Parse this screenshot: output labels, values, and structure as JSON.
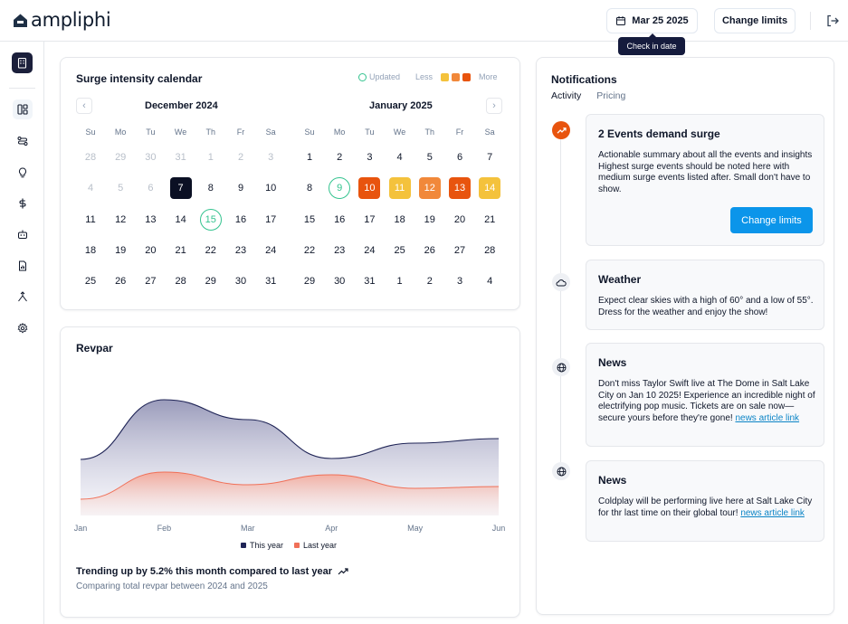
{
  "app": {
    "name": "ampliphi"
  },
  "header": {
    "date_label": "Mar 25 2025",
    "change_limits_label": "Change limits",
    "tooltip": "Check in date"
  },
  "sidebar": {
    "icons": [
      "building-icon",
      "layout-icon",
      "route-icon",
      "lightbulb-icon",
      "dollar-icon",
      "robot-icon",
      "report-icon",
      "merge-icon",
      "settings-icon"
    ]
  },
  "calendar": {
    "title": "Surge intensity calendar",
    "legend": {
      "updated": "Updated",
      "less": "Less",
      "more": "More"
    },
    "weekdays": [
      "Su",
      "Mo",
      "Tu",
      "We",
      "Th",
      "Fr",
      "Sa"
    ],
    "months": [
      {
        "title": "December 2024",
        "days": [
          {
            "d": "28",
            "s": "muted"
          },
          {
            "d": "29",
            "s": "muted"
          },
          {
            "d": "30",
            "s": "muted"
          },
          {
            "d": "31",
            "s": "muted"
          },
          {
            "d": "1",
            "s": "muted"
          },
          {
            "d": "2",
            "s": "muted"
          },
          {
            "d": "3",
            "s": "muted"
          },
          {
            "d": "4",
            "s": "muted"
          },
          {
            "d": "5",
            "s": "muted"
          },
          {
            "d": "6",
            "s": "muted"
          },
          {
            "d": "7",
            "s": "selected"
          },
          {
            "d": "8",
            "s": ""
          },
          {
            "d": "9",
            "s": ""
          },
          {
            "d": "10",
            "s": ""
          },
          {
            "d": "11",
            "s": ""
          },
          {
            "d": "12",
            "s": ""
          },
          {
            "d": "13",
            "s": ""
          },
          {
            "d": "14",
            "s": ""
          },
          {
            "d": "15",
            "s": "ring"
          },
          {
            "d": "16",
            "s": ""
          },
          {
            "d": "17",
            "s": ""
          },
          {
            "d": "18",
            "s": ""
          },
          {
            "d": "19",
            "s": ""
          },
          {
            "d": "20",
            "s": ""
          },
          {
            "d": "21",
            "s": ""
          },
          {
            "d": "22",
            "s": ""
          },
          {
            "d": "23",
            "s": ""
          },
          {
            "d": "24",
            "s": ""
          },
          {
            "d": "25",
            "s": ""
          },
          {
            "d": "26",
            "s": ""
          },
          {
            "d": "27",
            "s": ""
          },
          {
            "d": "28",
            "s": ""
          },
          {
            "d": "29",
            "s": ""
          },
          {
            "d": "30",
            "s": ""
          },
          {
            "d": "31",
            "s": ""
          }
        ]
      },
      {
        "title": "January 2025",
        "days": [
          {
            "d": "1",
            "s": ""
          },
          {
            "d": "2",
            "s": ""
          },
          {
            "d": "3",
            "s": ""
          },
          {
            "d": "4",
            "s": ""
          },
          {
            "d": "5",
            "s": ""
          },
          {
            "d": "6",
            "s": ""
          },
          {
            "d": "7",
            "s": ""
          },
          {
            "d": "8",
            "s": ""
          },
          {
            "d": "9",
            "s": "ring"
          },
          {
            "d": "10",
            "s": "h3"
          },
          {
            "d": "11",
            "s": "h1"
          },
          {
            "d": "12",
            "s": "h2"
          },
          {
            "d": "13",
            "s": "h3"
          },
          {
            "d": "14",
            "s": "h1"
          },
          {
            "d": "15",
            "s": ""
          },
          {
            "d": "16",
            "s": ""
          },
          {
            "d": "17",
            "s": ""
          },
          {
            "d": "18",
            "s": ""
          },
          {
            "d": "19",
            "s": ""
          },
          {
            "d": "20",
            "s": ""
          },
          {
            "d": "21",
            "s": ""
          },
          {
            "d": "22",
            "s": ""
          },
          {
            "d": "23",
            "s": ""
          },
          {
            "d": "24",
            "s": ""
          },
          {
            "d": "25",
            "s": ""
          },
          {
            "d": "26",
            "s": ""
          },
          {
            "d": "27",
            "s": ""
          },
          {
            "d": "28",
            "s": ""
          },
          {
            "d": "29",
            "s": ""
          },
          {
            "d": "30",
            "s": ""
          },
          {
            "d": "31",
            "s": ""
          },
          {
            "d": "1",
            "s": ""
          },
          {
            "d": "2",
            "s": ""
          },
          {
            "d": "3",
            "s": ""
          },
          {
            "d": "4",
            "s": ""
          }
        ]
      }
    ],
    "colors": {
      "low": "#f4c23c",
      "mid": "#f1883a",
      "high": "#e8540e",
      "updated": "#34c38f"
    }
  },
  "revpar": {
    "title": "Revpar",
    "trend_text": "Trending up by 5.2% this month compared to last year",
    "trend_sub": "Comparing total revpar between 2024 and 2025"
  },
  "chart_data": {
    "type": "area",
    "categories": [
      "Jan",
      "Feb",
      "Mar",
      "Apr",
      "May",
      "Jun"
    ],
    "series": [
      {
        "name": "This year",
        "values": [
          62,
          128,
          106,
          63,
          80,
          85
        ],
        "color": "#1f2456"
      },
      {
        "name": "Last year",
        "values": [
          18,
          48,
          34,
          45,
          30,
          32
        ],
        "color": "#f07058"
      }
    ],
    "ylim": [
      0,
      150
    ]
  },
  "notifications": {
    "title": "Notifications",
    "tabs": [
      "Activity",
      "Pricing"
    ],
    "items": [
      {
        "icon": "trending-up-icon",
        "title": "2 Events demand surge",
        "body": "Actionable summary about all the events and insights Highest surge events should be noted here with medium surge events listed after. Small don't have to show.",
        "action": "Change limits"
      },
      {
        "icon": "cloud-icon",
        "title": "Weather",
        "body": "Expect clear skies with a high of 60° and a low of 55°. Dress for the weather and enjoy the show!"
      },
      {
        "icon": "globe-icon",
        "title": "News",
        "body": "Don't miss Taylor Swift live at The Dome in Salt Lake City on Jan 10 2025! Experience an incredible night of electrifying pop music. Tickets are on sale now—secure yours before they're gone!",
        "link": "news article link"
      },
      {
        "icon": "globe-icon",
        "title": "News",
        "body": "Coldplay will be performing live here at Salt Lake City for thr last time on their global tour!",
        "link": "news article link"
      }
    ]
  }
}
